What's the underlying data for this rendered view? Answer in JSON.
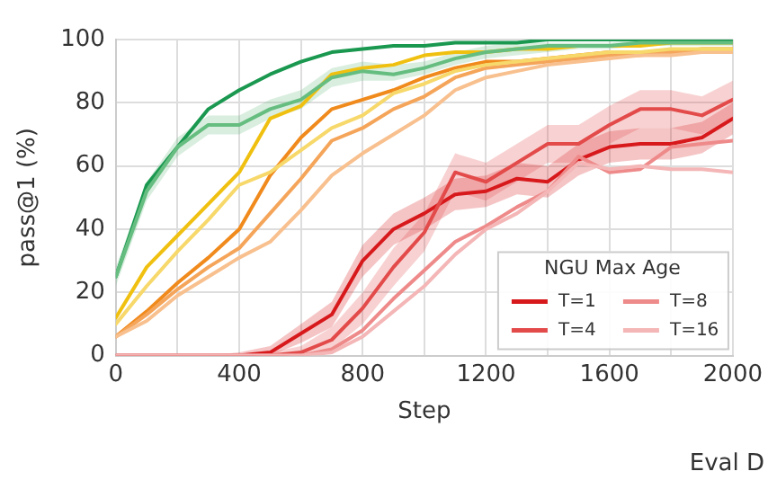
{
  "chart_data": {
    "type": "line",
    "xlabel": "Step",
    "ylabel": "pass@1 (%)",
    "legend_title": "NGU Max Age",
    "legend": "bottom right",
    "grid": true,
    "marker": "none",
    "line_style": "solid",
    "x": [
      0,
      100,
      200,
      300,
      400,
      500,
      600,
      700,
      800,
      900,
      1000,
      1100,
      1200,
      1300,
      1400,
      1500,
      1600,
      1700,
      1800,
      1900,
      2000
    ],
    "xlim": [
      0,
      2000
    ],
    "xticks": [
      0,
      {
        "value": 200,
        "label": null
      },
      400,
      {
        "value": 600,
        "label": null
      },
      800,
      {
        "value": 1000,
        "label": null
      },
      1200,
      {
        "value": 1400,
        "label": null
      },
      1600,
      {
        "value": 1800,
        "label": null
      },
      2000
    ],
    "ylim": [
      0,
      100
    ],
    "yticks": [
      0,
      20,
      40,
      60,
      80,
      100
    ],
    "annotations": [
      "Eval D"
    ],
    "series": [
      {
        "color": "#66bd80",
        "values": [
          25,
          52,
          66,
          73,
          73,
          78,
          81,
          88,
          90,
          89,
          91,
          94,
          96,
          97,
          98,
          98,
          98,
          99,
          99,
          99,
          99
        ],
        "lower": [
          22,
          49,
          63,
          70,
          70,
          75,
          78,
          85,
          87,
          87,
          89,
          92,
          94,
          95,
          96,
          97,
          97,
          98,
          98,
          98,
          98
        ],
        "upper": [
          28,
          55,
          69,
          76,
          76,
          81,
          84,
          91,
          93,
          92,
          93,
          96,
          98,
          99,
          99,
          99,
          99,
          100,
          100,
          100,
          100
        ]
      },
      {
        "color": "#1a9850",
        "values": [
          25,
          54,
          66,
          78,
          84,
          89,
          93,
          96,
          97,
          98,
          98,
          99,
          99,
          99,
          100,
          100,
          100,
          100,
          100,
          100,
          100
        ]
      },
      {
        "color": "#f7d86a",
        "values": [
          10,
          22,
          33,
          43,
          54,
          58,
          65,
          72,
          76,
          83,
          86,
          90,
          92,
          93,
          94,
          95,
          96,
          96,
          97,
          97,
          97
        ]
      },
      {
        "color": "#f0c010",
        "values": [
          12,
          28,
          38,
          48,
          58,
          75,
          79,
          89,
          91,
          92,
          95,
          96,
          96,
          97,
          97,
          98,
          98,
          98,
          99,
          99,
          99
        ]
      },
      {
        "color": "#f8c08e",
        "values": [
          6,
          11,
          19,
          25,
          31,
          36,
          46,
          57,
          64,
          70,
          76,
          84,
          88,
          90,
          92,
          93,
          94,
          95,
          95,
          96,
          96
        ]
      },
      {
        "color": "#f5a55a",
        "values": [
          6,
          13,
          21,
          28,
          34,
          45,
          56,
          68,
          72,
          78,
          82,
          88,
          91,
          92,
          93,
          94,
          95,
          95,
          96,
          96,
          96
        ]
      },
      {
        "color": "#f08a1c",
        "values": [
          6,
          14,
          23,
          31,
          40,
          57,
          69,
          78,
          81,
          84,
          88,
          91,
          93,
          93,
          94,
          95,
          96,
          96,
          96,
          97,
          97
        ]
      },
      {
        "name": "T=16",
        "color": "#f4b6b6",
        "values": [
          0,
          0,
          0,
          0,
          0,
          0,
          0,
          1,
          6,
          14,
          22,
          32,
          40,
          45,
          52,
          61,
          59,
          60,
          59,
          59,
          58
        ]
      },
      {
        "name": "T=8",
        "color": "#ee8a8a",
        "values": [
          0,
          0,
          0,
          0,
          0,
          0,
          0,
          2,
          8,
          18,
          27,
          36,
          41,
          47,
          52,
          63,
          58,
          59,
          66,
          67,
          68
        ]
      },
      {
        "name": "T=4",
        "color": "#e34a4a",
        "values": [
          0,
          0,
          0,
          0,
          0,
          0,
          1,
          5,
          15,
          28,
          39,
          58,
          55,
          61,
          67,
          67,
          73,
          78,
          78,
          76,
          81
        ],
        "lower": [
          0,
          0,
          0,
          0,
          0,
          0,
          0,
          2,
          10,
          22,
          33,
          52,
          49,
          55,
          61,
          61,
          67,
          72,
          72,
          70,
          75
        ],
        "upper": [
          0,
          0,
          0,
          0,
          0,
          1,
          3,
          9,
          20,
          34,
          45,
          64,
          61,
          67,
          73,
          73,
          79,
          84,
          84,
          82,
          87
        ]
      },
      {
        "name": "T=1",
        "color": "#d7191c",
        "values": [
          0,
          0,
          0,
          0,
          0,
          1,
          7,
          13,
          30,
          40,
          45,
          51,
          52,
          56,
          55,
          62,
          66,
          67,
          67,
          69,
          75
        ],
        "lower": [
          0,
          0,
          0,
          0,
          0,
          0,
          4,
          9,
          25,
          35,
          40,
          46,
          47,
          51,
          50,
          57,
          61,
          62,
          62,
          64,
          70
        ],
        "upper": [
          0,
          0,
          0,
          0,
          1,
          3,
          10,
          17,
          35,
          45,
          50,
          56,
          57,
          61,
          60,
          67,
          71,
          72,
          72,
          74,
          80
        ]
      }
    ]
  }
}
